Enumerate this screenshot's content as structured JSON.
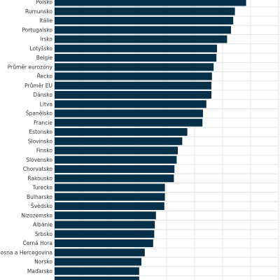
{
  "chart_data": {
    "type": "bar",
    "orientation": "horizontal",
    "categories": [
      "Polsko",
      "Rumunsko",
      "Itálie",
      "Portugalsko",
      "Irsko",
      "Lotyšsko",
      "Belgie",
      "Průměr eurozóny",
      "Řecko",
      "Průměr EU",
      "Dánsko",
      "Litva",
      "Španělsko",
      "Francie",
      "Estonsko",
      "Slovinsko",
      "Finsko",
      "Slovensko",
      "Chorvatsko",
      "Rakousko",
      "Turecko",
      "Bulharsko",
      "Švédsko",
      "Nizozemsko",
      "Albánie",
      "Srbsko",
      "Černá Hora",
      "Bosna a Hercegovina",
      "Norsko",
      "Maďarsko",
      ""
    ],
    "values": [
      3.42,
      3.22,
      3.19,
      3.15,
      3.08,
      2.9,
      2.89,
      2.84,
      2.81,
      2.8,
      2.8,
      2.71,
      2.65,
      2.64,
      2.37,
      2.28,
      2.2,
      2.18,
      2.14,
      2.13,
      1.97,
      1.97,
      1.96,
      1.81,
      1.79,
      1.78,
      1.76,
      1.61,
      1.55,
      1.51,
      1.51
    ],
    "xlim": [
      0,
      4
    ],
    "bar_color": "#06304a",
    "grid": true,
    "title": "",
    "xlabel": "",
    "ylabel": ""
  }
}
